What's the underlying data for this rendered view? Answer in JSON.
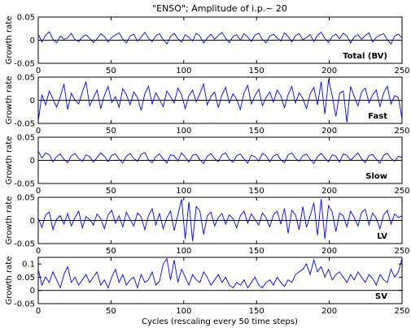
{
  "chart_data": {
    "type": "line",
    "title": "\"ENSO\"; Amplitude of i.p.~ 20",
    "xlabel": "Cycles (rescaling every 50 time steps)",
    "x": {
      "min": 0,
      "max": 250,
      "ticks": [
        "0",
        "50",
        "100",
        "150",
        "200",
        "250"
      ]
    },
    "panels": [
      {
        "name": "Total (BV)",
        "ylabel": "Growth rate",
        "ylim": [
          -0.05,
          0.05
        ],
        "yticks": [
          "0.05",
          "0",
          "-0.05"
        ],
        "tick_values": [
          0.05,
          0,
          -0.05
        ],
        "series": {
          "values": [
            0.013,
            -0.004,
            0.011,
            0.018,
            0.002,
            -0.006,
            0.009,
            0.002,
            0.005,
            0.015,
            0.001,
            -0.003,
            0.007,
            0.012,
            0.004,
            -0.005,
            0.003,
            0.014,
            0.008,
            -0.004,
            0.006,
            0.011,
            0.016,
            0.002,
            -0.006,
            0.009,
            0.013,
            -0.002,
            0.006,
            0.017,
            0.004,
            -0.003,
            0.01,
            0.014,
            0.001,
            -0.008,
            0.008,
            0.015,
            0.003,
            -0.004,
            0.012,
            0.006,
            -0.002,
            0.015,
            0.009,
            -0.006,
            0.005,
            0.013,
            0.002,
            0.01,
            0.017,
            0.004,
            -0.005,
            0.008,
            0.012,
            0.0,
            0.014,
            0.007,
            -0.003,
            0.011,
            0.015,
            0.002,
            -0.006,
            0.009,
            0.013,
            0.005,
            -0.002,
            0.016,
            0.008,
            -0.004,
            0.01,
            0.014,
            0.001,
            0.006,
            0.012,
            -0.003,
            0.011,
            0.017,
            0.004,
            -0.005,
            0.008,
            0.013,
            0.003,
            0.015,
            0.009,
            -0.006,
            0.007,
            0.012,
            0.002,
            0.01,
            0.016,
            -0.004,
            0.006,
            0.011,
            0.014,
            0.001,
            -0.008,
            0.009,
            0.013,
            0.005
          ]
        }
      },
      {
        "name": "Fast",
        "ylabel": "Growth rate",
        "ylim": [
          -0.05,
          0.05
        ],
        "yticks": [
          "0.05",
          "0",
          "-0.05"
        ],
        "tick_values": [
          0.05,
          0,
          -0.05
        ],
        "series": {
          "values": [
            -0.045,
            0.012,
            -0.01,
            0.02,
            0.003,
            -0.015,
            0.008,
            0.035,
            -0.02,
            0.015,
            0.0,
            -0.008,
            0.018,
            0.04,
            -0.012,
            0.005,
            0.022,
            -0.018,
            0.01,
            0.03,
            -0.005,
            0.008,
            -0.015,
            0.025,
            0.012,
            -0.01,
            0.018,
            0.006,
            -0.022,
            0.014,
            0.03,
            -0.008,
            0.016,
            0.002,
            -0.014,
            0.02,
            0.008,
            -0.006,
            0.026,
            0.012,
            -0.018,
            0.01,
            0.022,
            -0.004,
            0.015,
            0.035,
            -0.01,
            0.008,
            0.018,
            -0.016,
            0.012,
            0.028,
            -0.006,
            0.014,
            0.002,
            -0.02,
            0.016,
            0.032,
            -0.008,
            0.01,
            0.024,
            -0.012,
            0.006,
            0.018,
            -0.004,
            0.022,
            0.01,
            -0.016,
            0.012,
            0.03,
            -0.006,
            0.016,
            0.004,
            -0.018,
            0.014,
            0.028,
            -0.01,
            0.04,
            -0.03,
            0.045,
            0.01,
            -0.035,
            0.015,
            0.02,
            -0.048,
            0.03,
            0.008,
            -0.012,
            0.018,
            0.026,
            -0.006,
            0.012,
            0.022,
            -0.014,
            0.016,
            0.03,
            -0.008,
            0.01,
            0.006,
            -0.04
          ]
        }
      },
      {
        "name": "Slow",
        "ylabel": "Growth rate",
        "ylim": [
          -0.05,
          0.05
        ],
        "yticks": [
          "0.05",
          "0",
          "-0.05"
        ],
        "tick_values": [
          0.05,
          0,
          -0.05
        ],
        "series": {
          "values": [
            0.02,
            0.005,
            0.016,
            0.012,
            -0.003,
            0.008,
            0.014,
            0.002,
            -0.005,
            0.01,
            0.015,
            0.004,
            -0.002,
            0.012,
            0.008,
            -0.004,
            0.006,
            0.016,
            0.009,
            -0.003,
            0.011,
            0.014,
            0.002,
            -0.006,
            0.009,
            0.015,
            0.004,
            -0.002,
            0.013,
            0.017,
            0.001,
            -0.005,
            0.008,
            0.014,
            0.003,
            -0.006,
            0.012,
            0.01,
            -0.002,
            0.016,
            0.007,
            -0.004,
            0.011,
            0.013,
            0.001,
            -0.007,
            0.009,
            0.015,
            0.004,
            -0.003,
            0.012,
            0.016,
            0.002,
            -0.004,
            0.01,
            0.014,
            0.003,
            -0.006,
            0.011,
            0.008,
            -0.002,
            0.015,
            0.01,
            -0.003,
            0.009,
            0.013,
            0.001,
            -0.005,
            0.012,
            0.016,
            0.004,
            -0.002,
            0.01,
            0.014,
            0.002,
            -0.007,
            0.008,
            0.015,
            0.005,
            -0.003,
            0.012,
            0.009,
            -0.004,
            0.014,
            0.011,
            0.0,
            0.008,
            0.016,
            0.003,
            -0.005,
            0.01,
            0.013,
            0.002,
            -0.006,
            0.011,
            0.015,
            0.004,
            -0.002,
            0.009,
            0.006
          ]
        }
      },
      {
        "name": "LV",
        "ylabel": "Growth rate",
        "ylim": [
          -0.05,
          0.05
        ],
        "yticks": [
          "0.05",
          "0",
          "-0.05"
        ],
        "tick_values": [
          0.05,
          0,
          -0.05
        ],
        "series": {
          "values": [
            0.005,
            -0.015,
            0.012,
            0.018,
            -0.02,
            0.003,
            0.01,
            -0.008,
            0.015,
            -0.012,
            0.006,
            0.02,
            -0.016,
            0.008,
            0.002,
            -0.01,
            0.014,
            0.004,
            -0.018,
            0.012,
            0.022,
            -0.006,
            0.01,
            -0.014,
            0.018,
            0.002,
            -0.012,
            0.016,
            0.008,
            -0.02,
            0.01,
            0.025,
            -0.01,
            0.015,
            -0.018,
            0.006,
            0.02,
            -0.022,
            0.012,
            0.046,
            -0.04,
            0.04,
            -0.045,
            0.03,
            0.02,
            -0.03,
            0.01,
            0.018,
            -0.012,
            0.006,
            0.015,
            -0.008,
            0.012,
            0.004,
            -0.016,
            0.01,
            0.02,
            -0.006,
            0.014,
            0.002,
            -0.01,
            0.016,
            0.006,
            -0.014,
            0.012,
            0.02,
            -0.008,
            0.026,
            -0.028,
            0.022,
            0.012,
            -0.02,
            0.03,
            -0.015,
            0.01,
            0.038,
            -0.032,
            0.046,
            -0.04,
            0.032,
            0.018,
            -0.024,
            0.016,
            0.01,
            -0.014,
            0.02,
            0.006,
            -0.012,
            0.018,
            0.024,
            -0.01,
            0.016,
            0.004,
            -0.018,
            0.012,
            0.022,
            -0.008,
            0.014,
            0.006,
            0.01
          ]
        }
      },
      {
        "name": "SV",
        "ylabel": "Growth rate",
        "ylim": [
          -0.05,
          0.125
        ],
        "yticks": [
          "0.1",
          "0.05",
          "0",
          "-0.05"
        ],
        "tick_values": [
          0.1,
          0.05,
          0,
          -0.05
        ],
        "series": {
          "values": [
            0.08,
            0.02,
            0.05,
            0.03,
            0.07,
            0.04,
            0.01,
            0.06,
            0.09,
            0.03,
            0.05,
            0.02,
            0.04,
            0.06,
            0.03,
            0.05,
            0.07,
            0.02,
            0.04,
            0.01,
            0.05,
            0.08,
            0.03,
            0.06,
            0.02,
            0.04,
            0.05,
            0.01,
            0.06,
            0.03,
            0.04,
            0.07,
            0.02,
            0.035,
            0.1,
            0.12,
            0.04,
            0.115,
            0.03,
            0.08,
            0.05,
            0.02,
            0.06,
            0.04,
            0.03,
            0.07,
            0.05,
            0.02,
            0.04,
            0.06,
            0.03,
            0.05,
            0.02,
            0.01,
            0.03,
            0.02,
            0.04,
            0.01,
            0.03,
            0.05,
            0.02,
            0.01,
            0.03,
            0.04,
            0.02,
            0.05,
            0.03,
            0.015,
            0.04,
            0.03,
            0.06,
            0.07,
            0.08,
            0.1,
            0.06,
            0.115,
            0.07,
            0.09,
            0.05,
            0.08,
            0.04,
            0.06,
            0.07,
            0.05,
            0.03,
            0.06,
            0.04,
            0.07,
            0.05,
            0.03,
            0.06,
            0.045,
            0.02,
            0.06,
            0.04,
            0.03,
            0.08,
            0.05,
            0.07,
            0.12
          ]
        }
      }
    ]
  }
}
